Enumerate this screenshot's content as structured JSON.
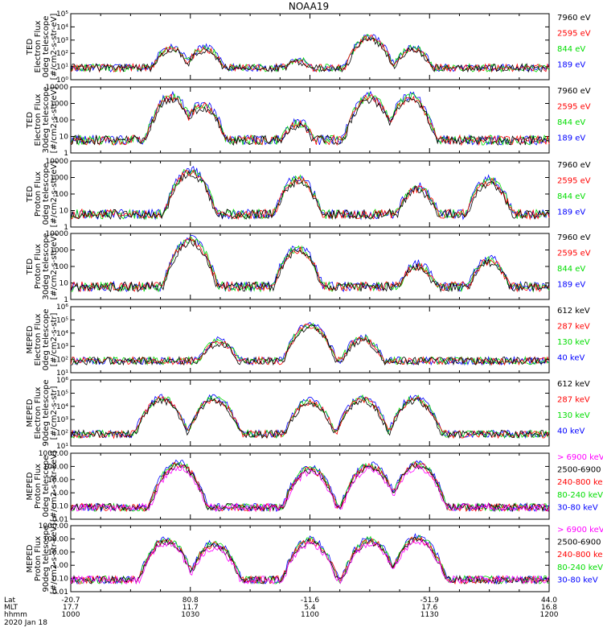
{
  "title": "NOAA19",
  "footer": {
    "date": "2020 Jan 18",
    "rows": [
      {
        "label": "Lat",
        "values": [
          "-20.7",
          "80.8",
          "-11.6",
          "-51.9",
          "44.0"
        ]
      },
      {
        "label": "MLT",
        "values": [
          "17.7",
          "11.7",
          "5.4",
          "17.6",
          "16.8"
        ]
      },
      {
        "label": "hhmm",
        "values": [
          "1000",
          "1030",
          "1100",
          "1130",
          "1200"
        ]
      }
    ]
  },
  "chart_data": [
    {
      "type": "line",
      "ylabel": [
        "TED",
        "Electron Flux",
        "0deg telescope",
        "[#/cm2-s-str-eV]"
      ],
      "yscale": "log",
      "ylim": [
        1,
        100000
      ],
      "yticks": [
        "10⁰",
        "10¹",
        "10²",
        "10³",
        "10⁴",
        "10⁵"
      ],
      "x_time": [
        "10:00",
        "12:00"
      ],
      "series": [
        {
          "name": "7960 eV",
          "color": "#000000"
        },
        {
          "name": "2595 eV",
          "color": "#ff0000"
        },
        {
          "name": "844 eV",
          "color": "#00dd00"
        },
        {
          "name": "189 eV",
          "color": "#0000ff"
        }
      ],
      "peaks": [
        {
          "t": 10.42,
          "v": 300
        },
        {
          "t": 10.56,
          "v": 300
        },
        {
          "t": 10.95,
          "v": 40
        },
        {
          "t": 11.25,
          "v": 2000
        },
        {
          "t": 11.43,
          "v": 300
        }
      ]
    },
    {
      "type": "line",
      "ylabel": [
        "TED",
        "Electron Flux",
        "30deg telescope",
        "[#/cm2-s-str-eV]"
      ],
      "yscale": "log",
      "ylim": [
        1,
        10000
      ],
      "yticks": [
        "1",
        "10",
        "100",
        "1000",
        "10000"
      ],
      "series": [
        {
          "name": "7960 eV",
          "color": "#000000"
        },
        {
          "name": "2595 eV",
          "color": "#ff0000"
        },
        {
          "name": "844 eV",
          "color": "#00dd00"
        },
        {
          "name": "189 eV",
          "color": "#0000ff"
        }
      ],
      "peaks": [
        {
          "t": 10.42,
          "v": 3000
        },
        {
          "t": 10.55,
          "v": 1000
        },
        {
          "t": 10.95,
          "v": 80
        },
        {
          "t": 11.25,
          "v": 3000
        },
        {
          "t": 11.42,
          "v": 3000
        }
      ]
    },
    {
      "type": "line",
      "ylabel": [
        "TED",
        "Proton Flux",
        "0deg telescope",
        "[#/cm2-s-str-eV]"
      ],
      "yscale": "log",
      "ylim": [
        1,
        10000
      ],
      "yticks": [
        "1",
        "10",
        "100",
        "1000",
        "10000"
      ],
      "series": [
        {
          "name": "7960 eV",
          "color": "#000000"
        },
        {
          "name": "2595 eV",
          "color": "#ff0000"
        },
        {
          "name": "844 eV",
          "color": "#00dd00"
        },
        {
          "name": "189 eV",
          "color": "#0000ff"
        }
      ],
      "peaks": [
        {
          "t": 10.5,
          "v": 3000
        },
        {
          "t": 10.95,
          "v": 1000
        },
        {
          "t": 11.45,
          "v": 300
        },
        {
          "t": 11.75,
          "v": 800
        }
      ]
    },
    {
      "type": "line",
      "ylabel": [
        "TED",
        "Proton Flux",
        "30deg telescope",
        "[#/cm2-s-str-eV]"
      ],
      "yscale": "log",
      "ylim": [
        1,
        10000
      ],
      "yticks": [
        "1",
        "10",
        "100",
        "1000",
        "10000"
      ],
      "series": [
        {
          "name": "7960 eV",
          "color": "#000000"
        },
        {
          "name": "2595 eV",
          "color": "#ff0000"
        },
        {
          "name": "844 eV",
          "color": "#00dd00"
        },
        {
          "name": "189 eV",
          "color": "#0000ff"
        }
      ],
      "peaks": [
        {
          "t": 10.5,
          "v": 5000
        },
        {
          "t": 10.95,
          "v": 1500
        },
        {
          "t": 11.45,
          "v": 150
        },
        {
          "t": 11.75,
          "v": 300
        }
      ]
    },
    {
      "type": "line",
      "ylabel": [
        "MEPED",
        "Electron Flux",
        "0deg telescope",
        "[#/cm2-s-str]"
      ],
      "yscale": "log",
      "ylim": [
        10,
        1000000
      ],
      "yticks": [
        "10¹",
        "10²",
        "10³",
        "10⁴",
        "10⁵",
        "10⁶"
      ],
      "series": [
        {
          "name": "612 keV",
          "color": "#000000"
        },
        {
          "name": "287 keV",
          "color": "#ff0000"
        },
        {
          "name": "130 keV",
          "color": "#00dd00"
        },
        {
          "name": "40 keV",
          "color": "#0000ff"
        }
      ],
      "peaks": [
        {
          "t": 11.0,
          "v": 50000
        },
        {
          "t": 10.62,
          "v": 3000
        },
        {
          "t": 11.22,
          "v": 5000
        }
      ]
    },
    {
      "type": "line",
      "ylabel": [
        "MEPED",
        "Electron Flux",
        "90deg telescope",
        "[#/cm2-s-str]"
      ],
      "yscale": "log",
      "ylim": [
        10,
        1000000
      ],
      "yticks": [
        "10¹",
        "10²",
        "10³",
        "10⁴",
        "10⁵",
        "10⁶"
      ],
      "series": [
        {
          "name": "612 keV",
          "color": "#000000"
        },
        {
          "name": "287 keV",
          "color": "#ff0000"
        },
        {
          "name": "130 keV",
          "color": "#00dd00"
        },
        {
          "name": "40 keV",
          "color": "#0000ff"
        }
      ],
      "peaks": [
        {
          "t": 10.38,
          "v": 50000
        },
        {
          "t": 10.6,
          "v": 50000
        },
        {
          "t": 11.0,
          "v": 30000
        },
        {
          "t": 11.22,
          "v": 50000
        },
        {
          "t": 11.44,
          "v": 50000
        }
      ]
    },
    {
      "type": "line",
      "ylabel": [
        "MEPED",
        "Proton Flux",
        "0deg telescope",
        "[#/cm2-s-str-keV]"
      ],
      "yscale": "log",
      "ylim": [
        0.01,
        1000
      ],
      "yticks": [
        "0.01",
        "0.10",
        "1.00",
        "10.00",
        "100.00",
        "1000.00"
      ],
      "series": [
        {
          "name": "> 6900 keV",
          "color": "#ff00ff"
        },
        {
          "name": "2500-6900",
          "color": "#000000"
        },
        {
          "name": "240-800 ke",
          "color": "#ff0000"
        },
        {
          "name": "80-240 keV",
          "color": "#00dd00"
        },
        {
          "name": "30-80 keV",
          "color": "#0000ff"
        }
      ],
      "peaks": [
        {
          "t": 10.45,
          "v": 200
        },
        {
          "t": 11.0,
          "v": 80
        },
        {
          "t": 11.25,
          "v": 150
        },
        {
          "t": 11.45,
          "v": 200
        }
      ]
    },
    {
      "type": "line",
      "ylabel": [
        "MEPED",
        "Proton Flux",
        "90deg telescope",
        "[#/cm2-s-str-keV]"
      ],
      "yscale": "log",
      "ylim": [
        0.01,
        1000
      ],
      "yticks": [
        "0.01",
        "0.10",
        "1.00",
        "10.00",
        "100.00",
        "1000.00"
      ],
      "series": [
        {
          "name": "> 6900 keV",
          "color": "#ff00ff"
        },
        {
          "name": "2500-6900",
          "color": "#000000"
        },
        {
          "name": "240-800 ke",
          "color": "#ff0000"
        },
        {
          "name": "80-240 keV",
          "color": "#00dd00"
        },
        {
          "name": "30-80 keV",
          "color": "#0000ff"
        }
      ],
      "peaks": [
        {
          "t": 10.4,
          "v": 100
        },
        {
          "t": 10.6,
          "v": 50
        },
        {
          "t": 11.0,
          "v": 100
        },
        {
          "t": 11.25,
          "v": 100
        },
        {
          "t": 11.45,
          "v": 150
        }
      ]
    }
  ]
}
